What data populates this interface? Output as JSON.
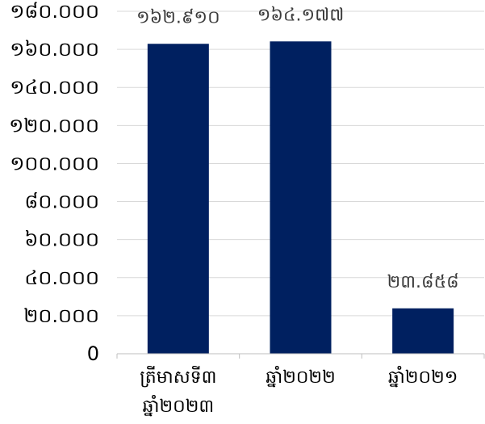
{
  "chart_data": {
    "type": "bar",
    "categories": [
      [
        "ត្រីមាសទី៣",
        "ឆ្នាំ២០២៣"
      ],
      [
        "ឆ្នាំ២០២២"
      ],
      [
        "ឆ្នាំ២០២១"
      ]
    ],
    "values": [
      162910,
      164177,
      23858
    ],
    "value_labels": [
      "១៦២.៩១០",
      "១៦៤.១៧៧",
      "២៣.៨៥៨"
    ],
    "y_ticks": [
      0,
      20000,
      40000,
      60000,
      80000,
      100000,
      120000,
      140000,
      160000,
      180000
    ],
    "y_tick_labels": [
      "0",
      "២០.០០០",
      "៤០.០០០",
      "៦០.០០០",
      "៨០.០០០",
      "១០០.០០០",
      "១២០.០០០",
      "១៤០.០០០",
      "១៦០.០០០",
      "១៨០.០០០"
    ],
    "ylim": [
      0,
      180000
    ],
    "grid": true,
    "bar_color": "#002060"
  }
}
